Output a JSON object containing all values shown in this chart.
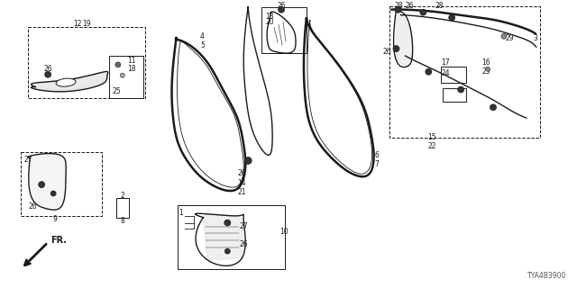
{
  "diagram_code": "TYA4B3900",
  "bg_color": "#ffffff",
  "line_color": "#1a1a1a",
  "fig_width": 6.4,
  "fig_height": 3.2,
  "dpi": 100
}
